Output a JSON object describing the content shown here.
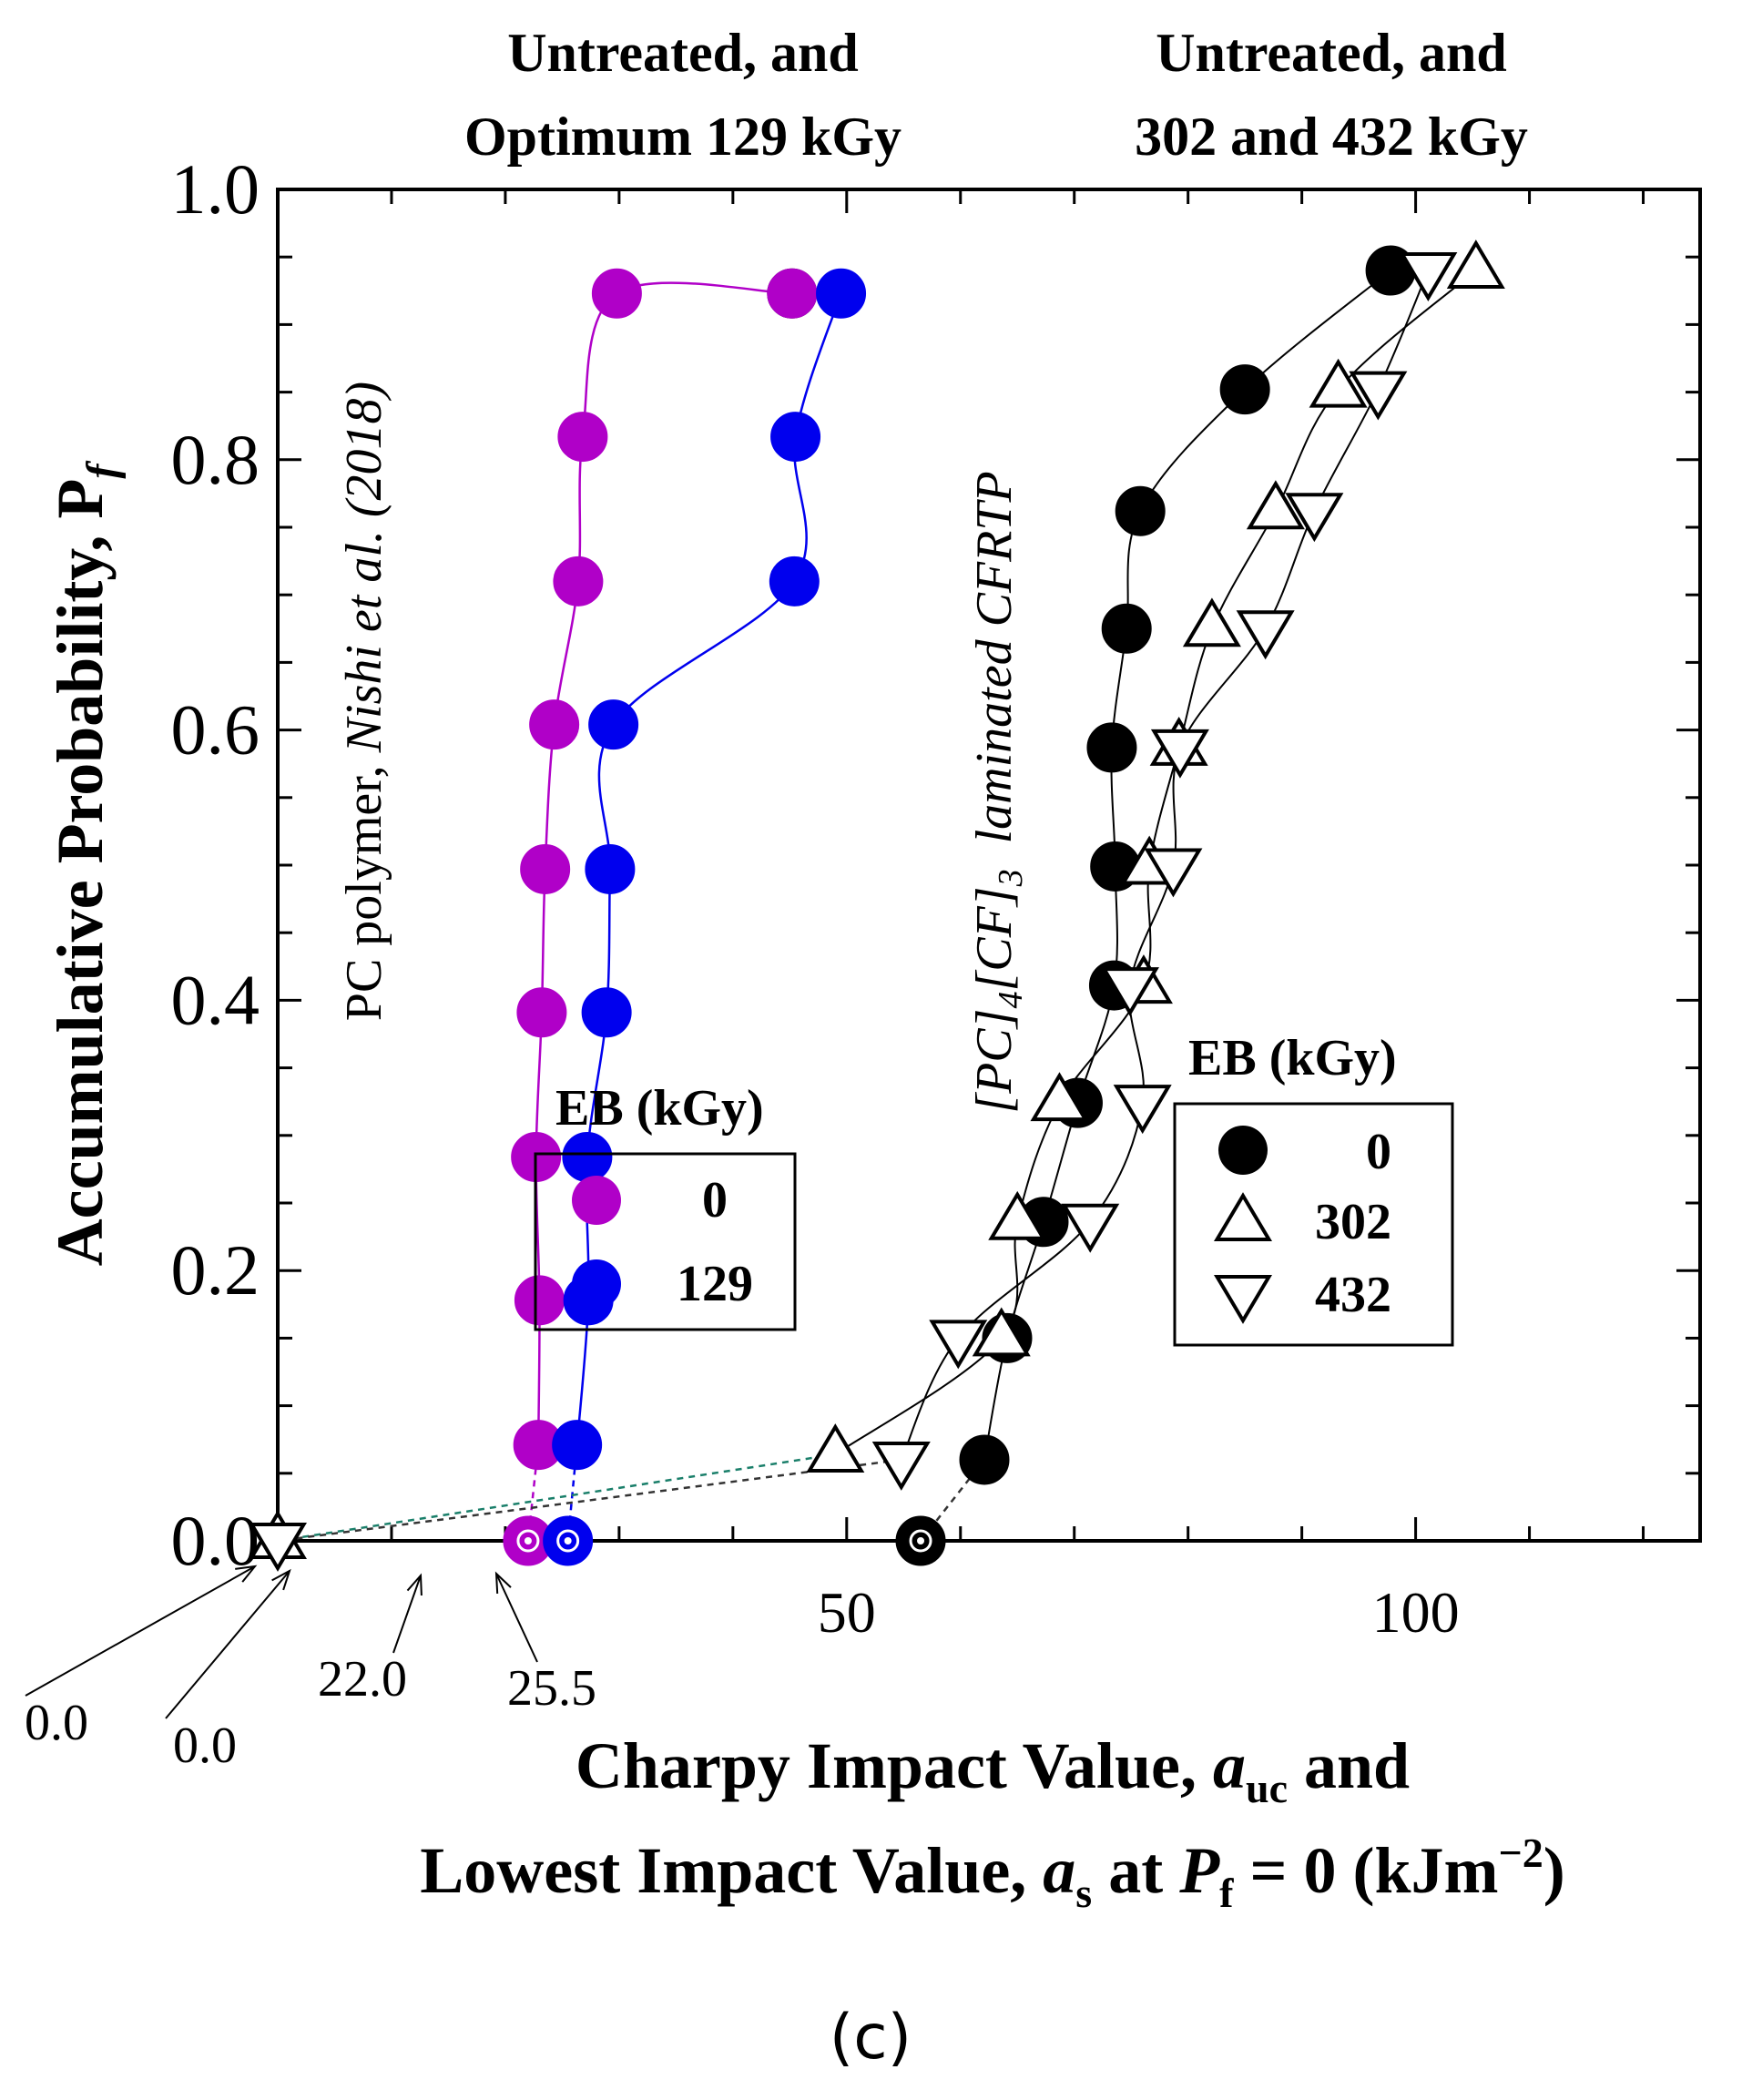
{
  "header": {
    "left_line1": "Untreated, and",
    "left_line2": "Optimum 129 kGy",
    "right_line1": "Untreated, and",
    "right_line2": "302 and 432 kGy"
  },
  "chart_data": {
    "type": "scatter",
    "xlim": [
      0,
      125
    ],
    "ylim": [
      0,
      1.0
    ],
    "x_ticks": [
      50,
      100
    ],
    "x_tick_labels": [
      "50",
      "100"
    ],
    "y_ticks": [
      0.0,
      0.2,
      0.4,
      0.6,
      0.8,
      1.0
    ],
    "y_tick_labels": [
      "0.0",
      "0.2",
      "0.4",
      "0.6",
      "0.8",
      "1.0"
    ],
    "ylabel": "Accumulative Probability, P",
    "ylabel_sub": "f",
    "xlabel_line1_pre": "Charpy Impact Value, ",
    "xlabel_line1_var": "a",
    "xlabel_line1_sub": "uc",
    "xlabel_line1_post": " and",
    "xlabel_line2_pre": "Lowest Impact Value, ",
    "xlabel_line2_var": "a",
    "xlabel_line2_sub": "s",
    "xlabel_line2_mid": " at ",
    "xlabel_line2_var2": "P",
    "xlabel_line2_sub2": "f",
    "xlabel_line2_post": " = 0 (kJm",
    "xlabel_line2_sup": "−2",
    "xlabel_line2_end": ")",
    "series": [
      {
        "name": "0",
        "group": "PC",
        "marker": "filled-circle",
        "color": "#b000c8",
        "x": [
          22.9,
          23.0,
          22.7,
          23.2,
          23.5,
          24.3,
          26.4,
          26.8,
          29.8,
          45.2
        ],
        "y": [
          0.071,
          0.178,
          0.284,
          0.391,
          0.497,
          0.604,
          0.71,
          0.817,
          0.923,
          0.923
        ],
        "lowest": 22.0
      },
      {
        "name": "129",
        "group": "PC",
        "marker": "filled-circle",
        "color": "#0000ee",
        "x": [
          26.3,
          27.3,
          27.2,
          28.9,
          29.2,
          29.5,
          45.4,
          45.5,
          49.5
        ],
        "y": [
          0.071,
          0.178,
          0.284,
          0.391,
          0.497,
          0.604,
          0.71,
          0.817,
          0.923
        ],
        "lowest": 25.5
      },
      {
        "name": "0",
        "group": "CFRTP",
        "marker": "filled-circle",
        "color": "#000000",
        "x": [
          62.1,
          64.1,
          67.3,
          70.3,
          73.5,
          73.6,
          73.3,
          74.6,
          75.8,
          85.0,
          97.8
        ],
        "y": [
          0.06,
          0.15,
          0.236,
          0.324,
          0.411,
          0.499,
          0.587,
          0.675,
          0.762,
          0.852,
          0.94
        ],
        "lowest": 56.5
      },
      {
        "name": "302",
        "group": "CFRTP",
        "marker": "open-triangle-up",
        "color": "#000000",
        "x": [
          49.0,
          63.6,
          65.0,
          68.7,
          76.1,
          76.6,
          79.2,
          82.1,
          87.7,
          93.2,
          105.3
        ],
        "y": [
          0.064,
          0.15,
          0.236,
          0.324,
          0.411,
          0.499,
          0.587,
          0.675,
          0.762,
          0.852,
          0.94
        ],
        "lowest": 0.0
      },
      {
        "name": "432",
        "group": "CFRTP",
        "marker": "open-triangle-down",
        "color": "#000000",
        "x": [
          54.8,
          59.8,
          71.4,
          76.0,
          74.9,
          78.7,
          79.3,
          86.8,
          91.1,
          96.7,
          101.1
        ],
        "y": [
          0.06,
          0.15,
          0.236,
          0.324,
          0.411,
          0.499,
          0.587,
          0.675,
          0.762,
          0.852,
          0.94
        ],
        "lowest": 0.0
      }
    ],
    "annotations": {
      "pc_label_pre": "PC polymer, ",
      "pc_label_ital": "Nishi et al. (2018)",
      "cfrtp_label_a": "[PC]",
      "cfrtp_sub_a": "4",
      "cfrtp_label_b": "[CF]",
      "cfrtp_sub_b": "3",
      "cfrtp_label_c": "  laminated CFRTP",
      "lowest_labels": [
        "0.0",
        "0.0",
        "22.0",
        "25.5"
      ]
    },
    "legend_left": {
      "title": "EB (kGy)",
      "entries": [
        "0",
        "129"
      ]
    },
    "legend_right": {
      "title": "EB (kGy)",
      "entries": [
        "0",
        "302",
        "432"
      ]
    }
  },
  "caption": "(c)"
}
